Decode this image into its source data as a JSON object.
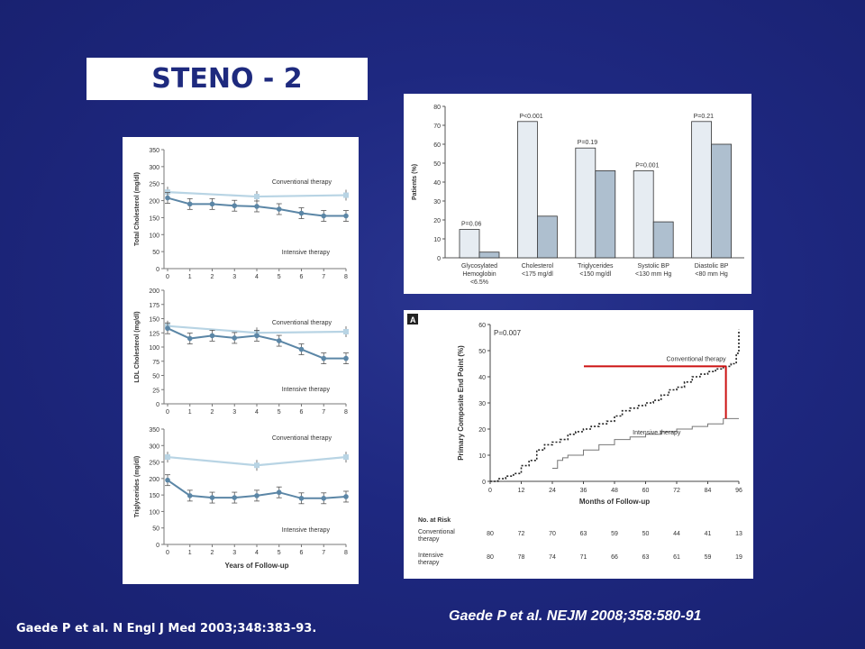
{
  "slide": {
    "title": "STENO - 2",
    "citation_left": "Gaede P et al. N Engl J Med 2003;348:383-93.",
    "citation_right": "Gaede P et al. NEJM 2008;358:580-91"
  },
  "colors": {
    "background": "#1e2880",
    "title_text": "#1e2a7e",
    "conventional_line": "#b8d4e4",
    "intensive_line": "#5b86a6",
    "bar_conventional": "#e6ecf2",
    "bar_intensive": "#aebfcf",
    "highlight_red": "#cc1111"
  },
  "chart_data": [
    {
      "type": "line",
      "xlabel": "",
      "ylabel": "Total Cholesterol (mg/dl)",
      "ylim": [
        0,
        350
      ],
      "yticks": [
        "0",
        "50",
        "100",
        "150",
        "200",
        "250",
        "300",
        "350"
      ],
      "x": [
        0,
        1,
        2,
        3,
        4,
        5,
        6,
        7,
        8
      ],
      "xticks": [
        "0",
        "1",
        "2",
        "3",
        "4",
        "5",
        "6",
        "7",
        "8"
      ],
      "series": [
        {
          "name": "Conventional therapy",
          "x": [
            0,
            4,
            8
          ],
          "values": [
            225,
            212,
            216
          ]
        },
        {
          "name": "Intensive therapy",
          "x": [
            0,
            1,
            2,
            3,
            4,
            5,
            6,
            7,
            8
          ],
          "values": [
            208,
            190,
            190,
            185,
            183,
            175,
            163,
            155,
            155
          ]
        }
      ],
      "labels": {
        "conventional": "Conventional therapy",
        "intensive": "Intensive therapy"
      }
    },
    {
      "type": "line",
      "xlabel": "",
      "ylabel": "LDL Cholesterol (mg/dl)",
      "ylim": [
        0,
        200
      ],
      "yticks": [
        "0",
        "25",
        "50",
        "75",
        "100",
        "125",
        "150",
        "175",
        "200"
      ],
      "x": [
        0,
        1,
        2,
        3,
        4,
        5,
        6,
        7,
        8
      ],
      "xticks": [
        "0",
        "1",
        "2",
        "3",
        "4",
        "5",
        "6",
        "7",
        "8"
      ],
      "series": [
        {
          "name": "Conventional therapy",
          "x": [
            0,
            4,
            8
          ],
          "values": [
            137,
            125,
            127
          ]
        },
        {
          "name": "Intensive therapy",
          "x": [
            0,
            1,
            2,
            3,
            4,
            5,
            6,
            7,
            8
          ],
          "values": [
            133,
            115,
            120,
            116,
            120,
            111,
            96,
            80,
            80
          ]
        }
      ],
      "labels": {
        "conventional": "Conventional therapy",
        "intensive": "Intensive therapy"
      }
    },
    {
      "type": "line",
      "xlabel": "Years of Follow-up",
      "ylabel": "Triglycerides (mg/dl)",
      "ylim": [
        0,
        350
      ],
      "yticks": [
        "0",
        "50",
        "100",
        "150",
        "200",
        "250",
        "300",
        "350"
      ],
      "x": [
        0,
        1,
        2,
        3,
        4,
        5,
        6,
        7,
        8
      ],
      "xticks": [
        "0",
        "1",
        "2",
        "3",
        "4",
        "5",
        "6",
        "7",
        "8"
      ],
      "series": [
        {
          "name": "Conventional therapy",
          "x": [
            0,
            4,
            8
          ],
          "values": [
            265,
            240,
            265
          ]
        },
        {
          "name": "Intensive therapy",
          "x": [
            0,
            1,
            2,
            3,
            4,
            5,
            6,
            7,
            8
          ],
          "values": [
            195,
            148,
            142,
            142,
            148,
            158,
            140,
            140,
            145
          ]
        }
      ],
      "labels": {
        "conventional": "Conventional therapy",
        "intensive": "Intensive therapy"
      }
    },
    {
      "type": "bar",
      "ylabel": "Patients (%)",
      "ylim": [
        0,
        80
      ],
      "yticks": [
        "0",
        "10",
        "20",
        "30",
        "40",
        "50",
        "60",
        "70",
        "80"
      ],
      "categories": [
        [
          "Glycosylated",
          "Hemoglobin",
          "<6.5%"
        ],
        [
          "Cholesterol",
          "<175 mg/dl"
        ],
        [
          "Triglycerides",
          "<150 mg/dl"
        ],
        [
          "Systolic BP",
          "<130 mm Hg"
        ],
        [
          "Diastolic BP",
          "<80 mm Hg"
        ]
      ],
      "pvalues": [
        "P=0.06",
        "P<0.001",
        "P=0.19",
        "P=0.001",
        "P=0.21"
      ],
      "series": [
        {
          "values": [
            15,
            72,
            58,
            46,
            72
          ]
        },
        {
          "values": [
            3,
            22,
            46,
            19,
            60
          ]
        }
      ]
    },
    {
      "type": "line",
      "panel_label": "A",
      "xlabel": "Months of Follow-up",
      "ylabel": "Primary Composite End Point (%)",
      "ylim": [
        0,
        60
      ],
      "xlim": [
        0,
        96
      ],
      "yticks": [
        "0",
        "10",
        "20",
        "30",
        "40",
        "50",
        "60"
      ],
      "xticks": [
        "0",
        "12",
        "24",
        "36",
        "48",
        "60",
        "72",
        "84",
        "96"
      ],
      "pvalue": "P=0.007",
      "series": [
        {
          "name": "Conventional therapy",
          "x": [
            0,
            3,
            6,
            9,
            12,
            15,
            18,
            21,
            24,
            27,
            30,
            33,
            36,
            39,
            42,
            45,
            48,
            51,
            54,
            57,
            60,
            63,
            66,
            69,
            72,
            75,
            78,
            81,
            84,
            87,
            90,
            93,
            95,
            96
          ],
          "values": [
            0,
            1,
            2,
            3,
            6,
            8,
            12,
            14,
            15,
            16,
            18,
            19,
            20,
            21,
            22,
            23,
            25,
            27,
            28,
            29,
            30,
            31,
            33,
            35,
            36,
            38,
            40,
            41,
            42,
            43,
            44,
            45,
            49,
            58
          ]
        },
        {
          "name": "Intensive therapy",
          "x": [
            24,
            26,
            28,
            30,
            36,
            42,
            48,
            54,
            60,
            66,
            72,
            78,
            84,
            90,
            96
          ],
          "values": [
            5,
            8,
            9,
            10,
            12,
            14,
            16,
            17,
            18,
            19,
            20,
            21,
            22,
            24,
            24
          ]
        }
      ],
      "labels": {
        "conventional": "Conventional therapy",
        "intensive": "Intensive therapy"
      },
      "risk_table": {
        "header": "No. at Risk",
        "rows": [
          {
            "label": [
              "Conventional",
              "therapy"
            ],
            "values": [
              "80",
              "72",
              "70",
              "63",
              "59",
              "50",
              "44",
              "41",
              "13"
            ]
          },
          {
            "label": [
              "Intensive",
              "therapy"
            ],
            "values": [
              "80",
              "78",
              "74",
              "71",
              "66",
              "63",
              "61",
              "59",
              "19"
            ]
          }
        ]
      },
      "highlight": {
        "y_conventional": 44,
        "y_intensive": 24
      }
    }
  ]
}
